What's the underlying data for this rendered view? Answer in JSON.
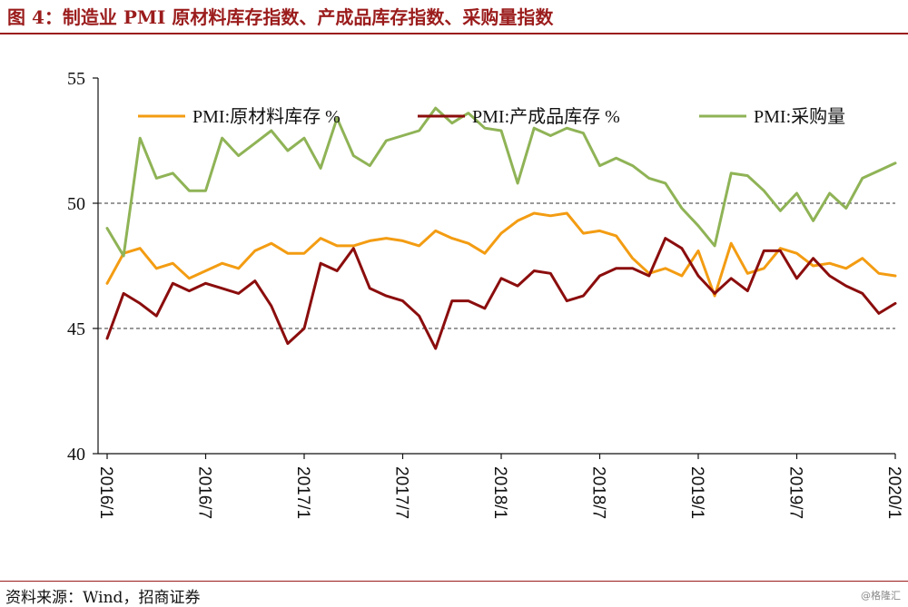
{
  "header": {
    "title": "图 4：制造业 PMI 原材料库存指数、产成品库存指数、采购量指数"
  },
  "footer": {
    "source": "资料来源：Wind，招商证券",
    "watermark": "@格隆汇"
  },
  "colors": {
    "title": "#9b1c1c",
    "raw_inventory": "#f39c12",
    "finished_inventory": "#8b0d0d",
    "purchase": "#8fb356"
  },
  "chart_data": {
    "type": "line",
    "ylim": [
      40,
      55
    ],
    "yticks": [
      40,
      45,
      50,
      55
    ],
    "gridlines_y": [
      45,
      50
    ],
    "x_tick_labels": [
      "2016/1",
      "2016/7",
      "2017/1",
      "2017/7",
      "2018/1",
      "2018/7",
      "2019/1",
      "2019/7",
      "2020/1"
    ],
    "x_tick_index": [
      0,
      6,
      12,
      18,
      24,
      30,
      36,
      42,
      48
    ],
    "x_count": 49,
    "legend_position": "top",
    "series": [
      {
        "name": "PMI:原材料库存 %",
        "color": "#f39c12",
        "values": [
          46.8,
          48.0,
          48.2,
          47.4,
          47.6,
          47.0,
          47.3,
          47.6,
          47.4,
          48.1,
          48.4,
          48.0,
          48.0,
          48.6,
          48.3,
          48.3,
          48.5,
          48.6,
          48.5,
          48.3,
          48.9,
          48.6,
          48.4,
          48.0,
          48.8,
          49.3,
          49.6,
          49.5,
          49.6,
          48.8,
          48.9,
          48.7,
          47.8,
          47.2,
          47.4,
          47.1,
          48.1,
          46.3,
          48.4,
          47.2,
          47.4,
          48.2,
          48.0,
          47.5,
          47.6,
          47.4,
          47.8,
          47.2,
          47.1
        ]
      },
      {
        "name": "PMI:产成品库存 %",
        "color": "#8b0d0d",
        "values": [
          44.6,
          46.4,
          46.0,
          45.5,
          46.8,
          46.5,
          46.8,
          46.6,
          46.4,
          46.9,
          45.9,
          44.4,
          45.0,
          47.6,
          47.3,
          48.2,
          46.6,
          46.3,
          46.1,
          45.5,
          44.2,
          46.1,
          46.1,
          45.8,
          47.0,
          46.7,
          47.3,
          47.2,
          46.1,
          46.3,
          47.1,
          47.4,
          47.4,
          47.1,
          48.6,
          48.2,
          47.1,
          46.4,
          47.0,
          46.5,
          48.1,
          48.1,
          47.0,
          47.8,
          47.1,
          46.7,
          46.4,
          45.6,
          46.0
        ]
      },
      {
        "name": "PMI:采购量",
        "color": "#8fb356",
        "values": [
          49.0,
          47.9,
          52.6,
          51.0,
          51.2,
          50.5,
          50.5,
          52.6,
          51.9,
          52.4,
          52.9,
          52.1,
          52.6,
          51.4,
          53.4,
          51.9,
          51.5,
          52.5,
          52.7,
          52.9,
          53.8,
          53.2,
          53.6,
          53.0,
          52.9,
          50.8,
          53.0,
          52.7,
          53.0,
          52.8,
          51.5,
          51.8,
          51.5,
          51.0,
          50.8,
          49.8,
          49.1,
          48.3,
          51.2,
          51.1,
          50.5,
          49.7,
          50.4,
          49.3,
          50.4,
          49.8,
          51.0,
          51.3,
          51.6
        ]
      }
    ]
  }
}
